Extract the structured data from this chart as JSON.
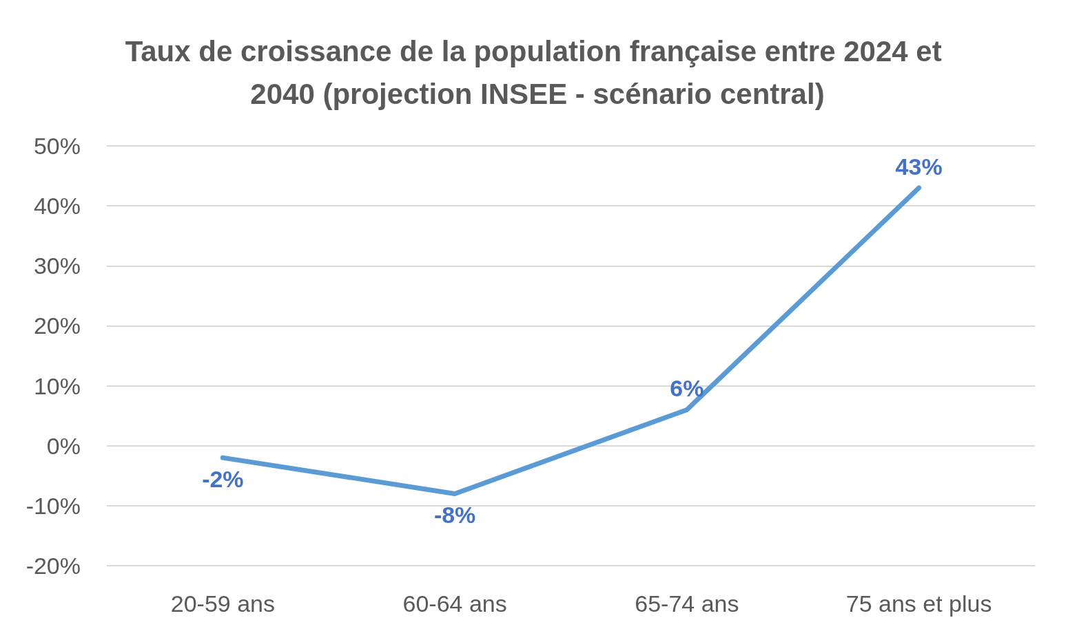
{
  "chart_data": {
    "type": "line",
    "title": "Taux de croissance de la population française entre 2024 et 2040 (projection INSEE - scénario central)",
    "categories": [
      "20-59 ans",
      "60-64 ans",
      "65-74 ans",
      "75 ans et plus"
    ],
    "series": [
      {
        "color": "#5b9bd5",
        "values": [
          -2,
          -8,
          6,
          43
        ],
        "value_labels": [
          "-2%",
          "-8%",
          "6%",
          "43%"
        ]
      }
    ],
    "ylim": [
      -20,
      50
    ],
    "yticks": [
      {
        "value": -20,
        "label": "-20%"
      },
      {
        "value": -10,
        "label": "-10%"
      },
      {
        "value": 0,
        "label": "0%"
      },
      {
        "value": 10,
        "label": "10%"
      },
      {
        "value": 20,
        "label": "20%"
      },
      {
        "value": 30,
        "label": "30%"
      },
      {
        "value": 40,
        "label": "40%"
      },
      {
        "value": 50,
        "label": "50%"
      }
    ],
    "grid": "y",
    "marker": "none",
    "line_style": "solid"
  }
}
